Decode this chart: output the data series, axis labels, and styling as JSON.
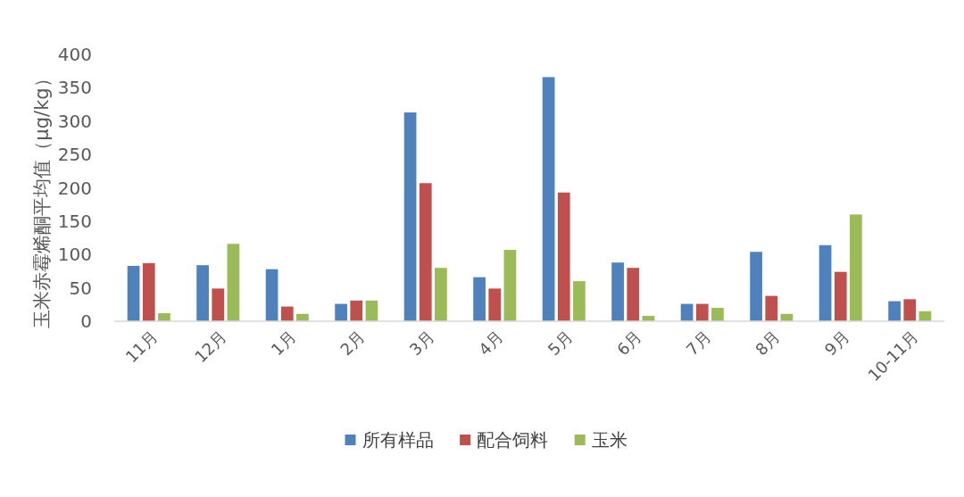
{
  "chart_data": {
    "type": "bar",
    "ylabel": "玉米赤霉烯酮平均值（μg/kg）",
    "categories": [
      "11月",
      "12月",
      "1月",
      "2月",
      "3月",
      "4月",
      "5月",
      "6月",
      "7月",
      "8月",
      "9月",
      "10-11月"
    ],
    "series": [
      {
        "name": "所有样品",
        "color": "#4f81bd",
        "values": [
          83,
          84,
          78,
          26,
          313,
          66,
          366,
          88,
          26,
          104,
          114,
          30
        ]
      },
      {
        "name": "配合饲料",
        "color": "#c0504d",
        "values": [
          87,
          49,
          22,
          31,
          207,
          49,
          193,
          80,
          26,
          38,
          74,
          33
        ]
      },
      {
        "name": "玉米",
        "color": "#9bbb59",
        "values": [
          12,
          116,
          11,
          31,
          80,
          107,
          60,
          8,
          20,
          11,
          160,
          15
        ]
      }
    ],
    "ylim": [
      0,
      400
    ],
    "yticks": [
      0,
      50,
      100,
      150,
      200,
      250,
      300,
      350,
      400
    ],
    "legend": "bottom"
  }
}
